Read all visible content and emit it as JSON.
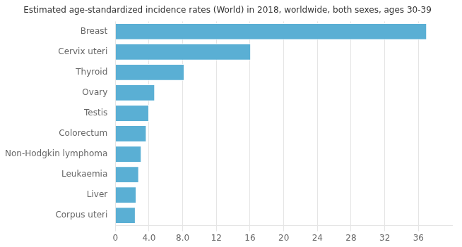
{
  "chart_data": {
    "type": "bar",
    "orientation": "horizontal",
    "title": "Estimated age-standardized incidence rates (World) in 2018, worldwide, both sexes, ages 30-39",
    "categories": [
      "Corpus uteri",
      "Liver",
      "Leukaemia",
      "Non-Hodgkin lymphoma",
      "Colorectum",
      "Testis",
      "Ovary",
      "Thyroid",
      "Cervix uteri",
      "Breast"
    ],
    "values": [
      2.4,
      2.5,
      2.8,
      3.1,
      3.7,
      4.0,
      4.7,
      8.2,
      16.1,
      37.0
    ],
    "color": "#5aafd4",
    "xlim": [
      0,
      40
    ],
    "xticks": [
      0,
      {
        "value": 4,
        "label": "4.0"
      },
      {
        "value": 8,
        "label": "8.0"
      },
      12,
      16,
      20,
      24,
      28,
      32,
      36
    ],
    "grid": true
  }
}
